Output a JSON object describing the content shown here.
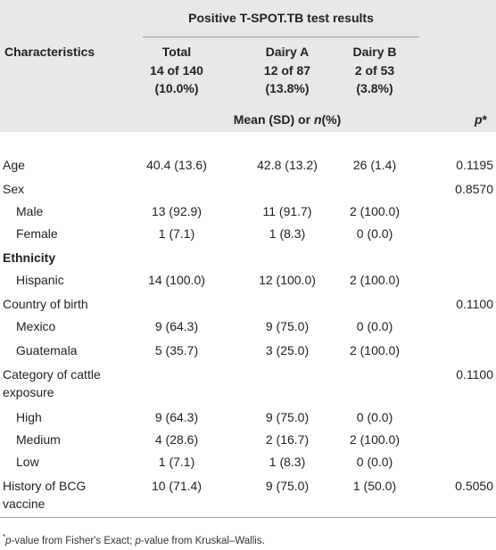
{
  "header": {
    "group_title": "Positive T-SPOT.TB test results",
    "characteristics": "Characteristics",
    "columns": [
      {
        "name": "Total",
        "count": "14 of 140",
        "percent": "(10.0%)"
      },
      {
        "name": "Dairy A",
        "count": "12 of 87",
        "percent": "(13.8%)"
      },
      {
        "name": "Dairy B",
        "count": "2 of 53",
        "percent": "(3.8%)"
      }
    ],
    "stat_label": [
      "Mean (SD) or ",
      "n",
      "(%)"
    ],
    "p_label": [
      "p",
      "*"
    ]
  },
  "rows": [
    {
      "label": "Age",
      "cells": {
        "total": "40.4 (13.6)",
        "dairy_a": "42.8 (13.2)",
        "dairy_b": "26 (1.4)",
        "p": "0.1195"
      }
    },
    {
      "label": "Sex",
      "cells": {
        "p": "0.8570"
      }
    },
    {
      "label": "Male",
      "cells": {
        "total": "13 (92.9)",
        "dairy_a": "11 (91.7)",
        "dairy_b": "2 (100.0)"
      }
    },
    {
      "label": "Female",
      "cells": {
        "total": "1 (7.1)",
        "dairy_a": "1 (8.3)",
        "dairy_b": "0 (0.0)"
      }
    },
    {
      "label": "Ethnicity",
      "cells": {}
    },
    {
      "label": "Hispanic",
      "cells": {
        "total": "14 (100.0)",
        "dairy_a": "12 (100.0)",
        "dairy_b": "2 (100.0)"
      }
    },
    {
      "label": "Country of birth",
      "cells": {
        "p": "0.1100"
      }
    },
    {
      "label": "Mexico",
      "cells": {
        "total": "9 (64.3)",
        "dairy_a": "9 (75.0)",
        "dairy_b": "0 (0.0)"
      }
    },
    {
      "label": "Guatemala",
      "cells": {
        "total": "5 (35.7)",
        "dairy_a": "3 (25.0)",
        "dairy_b": "2 (100.0)"
      }
    },
    {
      "label": "Category of cattle exposure",
      "cells": {
        "p": "0.1100"
      }
    },
    {
      "label": "High",
      "cells": {
        "total": "9 (64.3)",
        "dairy_a": "9 (75.0)",
        "dairy_b": "0 (0.0)"
      }
    },
    {
      "label": "Medium",
      "cells": {
        "total": "4 (28.6)",
        "dairy_a": "2 (16.7)",
        "dairy_b": "2 (100.0)"
      }
    },
    {
      "label": "Low",
      "cells": {
        "total": "1 (7.1)",
        "dairy_a": "1 (8.3)",
        "dairy_b": "0 (0.0)"
      }
    },
    {
      "label": "History of BCG vaccine",
      "cells": {
        "total": "10 (71.4)",
        "dairy_a": "9 (75.0)",
        "dairy_b": "1 (50.0)",
        "p": "0.5050"
      }
    }
  ],
  "footnote": [
    "*",
    "p",
    "-value from Fisher's Exact; ",
    "p",
    "-value from Kruskal–Wallis."
  ]
}
